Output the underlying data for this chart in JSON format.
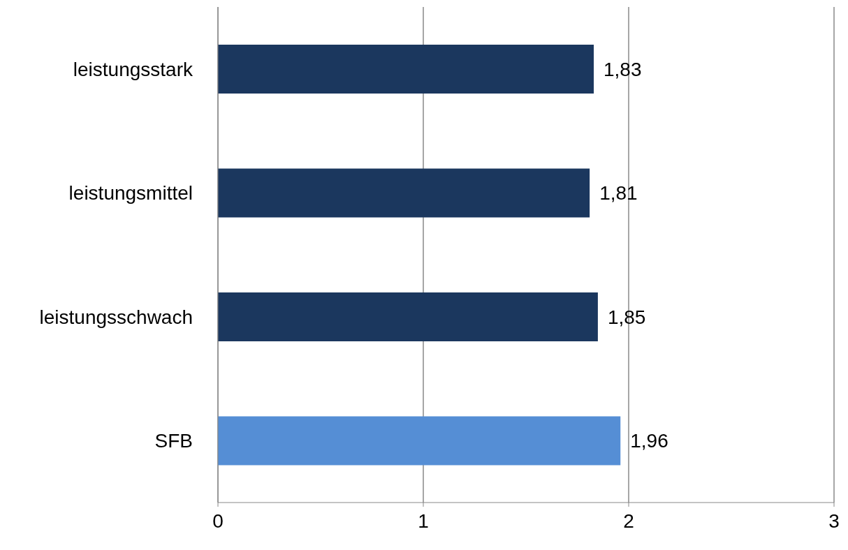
{
  "chart_data": {
    "type": "bar",
    "orientation": "horizontal",
    "categories": [
      "leistungsstark",
      "leistungsmittel",
      "leistungsschwach",
      "SFB"
    ],
    "values": [
      1.83,
      1.81,
      1.85,
      1.96
    ],
    "colors": [
      "#1b375e",
      "#1b375e",
      "#1b375e",
      "#558ed5"
    ],
    "value_labels": [
      "1,83",
      "1,81",
      "1,85",
      "1,96"
    ],
    "xlim": [
      0,
      3
    ],
    "xticks": [
      0,
      1,
      2,
      3
    ],
    "grid": "x",
    "legend": false
  }
}
